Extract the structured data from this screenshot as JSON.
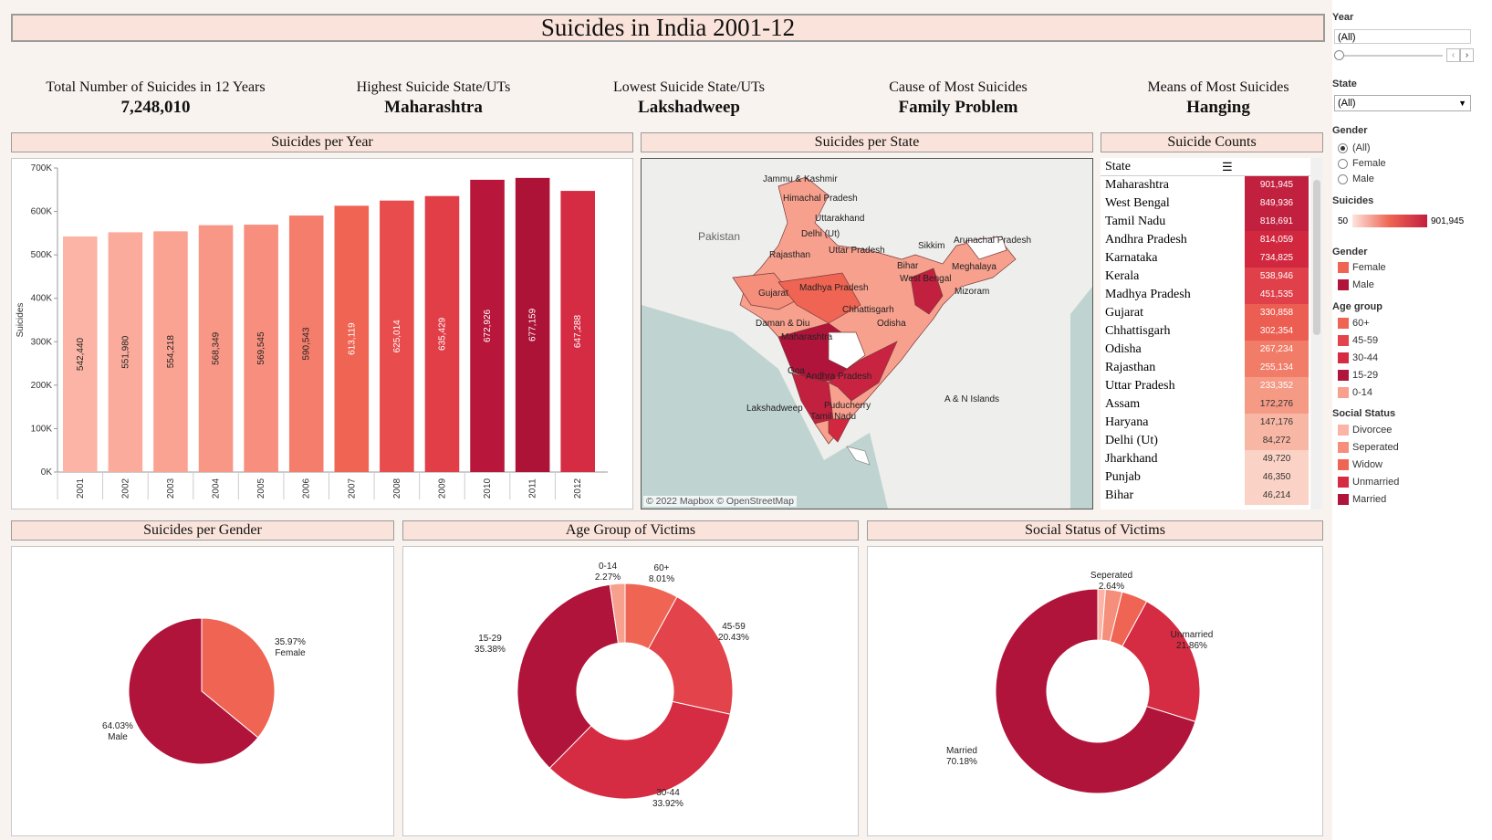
{
  "title": "Suicides in India 2001-12",
  "kpis": [
    {
      "label": "Total Number of Suicides in 12 Years",
      "value": "7,248,010"
    },
    {
      "label": "Highest Suicide State/UTs",
      "value": "Maharashtra"
    },
    {
      "label": "Lowest Suicide State/UTs",
      "value": "Lakshadweep"
    },
    {
      "label": "Cause of Most Suicides",
      "value": "Family Problem"
    },
    {
      "label": "Means of Most Suicides",
      "value": "Hanging"
    }
  ],
  "panels": {
    "per_year": "Suicides per Year",
    "per_state": "Suicides per State",
    "counts": "Suicide Counts",
    "gender": "Suicides per Gender",
    "age": "Age Group of Victims",
    "social": "Social Status of Victims"
  },
  "map": {
    "labels": [
      "Pakistan",
      "Jammu & Kashmir",
      "Himachal Pradesh",
      "Uttarakhand",
      "Delhi (Ut)",
      "Rajasthan",
      "Uttar Pradesh",
      "Sikkim",
      "Arunachal Pradesh",
      "Bihar",
      "Meghalaya",
      "West Bengal",
      "Gujarat",
      "Madhya Pradesh",
      "Mizoram",
      "Chhattisgarh",
      "Daman & Diu",
      "Odisha",
      "Maharashtra",
      "Goa",
      "Andhra Pradesh",
      "A & N Islands",
      "Lakshadweep",
      "Puducherry",
      "Tamil Nadu"
    ],
    "attribution": "© 2022 Mapbox  © OpenStreetMap"
  },
  "table": {
    "header": "State",
    "rows": [
      {
        "state": "Maharashtra",
        "count": "901,945"
      },
      {
        "state": "West Bengal",
        "count": "849,936"
      },
      {
        "state": "Tamil Nadu",
        "count": "818,691"
      },
      {
        "state": "Andhra Pradesh",
        "count": "814,059"
      },
      {
        "state": "Karnataka",
        "count": "734,825"
      },
      {
        "state": "Kerala",
        "count": "538,946"
      },
      {
        "state": "Madhya Pradesh",
        "count": "451,535"
      },
      {
        "state": "Gujarat",
        "count": "330,858"
      },
      {
        "state": "Chhattisgarh",
        "count": "302,354"
      },
      {
        "state": "Odisha",
        "count": "267,234"
      },
      {
        "state": "Rajasthan",
        "count": "255,134"
      },
      {
        "state": "Uttar Pradesh",
        "count": "233,352"
      },
      {
        "state": "Assam",
        "count": "172,276"
      },
      {
        "state": "Haryana",
        "count": "147,176"
      },
      {
        "state": "Delhi (Ut)",
        "count": "84,272"
      },
      {
        "state": "Jharkhand",
        "count": "49,720"
      },
      {
        "state": "Punjab",
        "count": "46,350"
      },
      {
        "state": "Bihar",
        "count": "46,214"
      }
    ]
  },
  "sidebar": {
    "year_label": "Year",
    "year_value": "(All)",
    "state_label": "State",
    "state_value": "(All)",
    "gender_filter_label": "Gender",
    "gender_options": [
      "(All)",
      "Female",
      "Male"
    ],
    "suicides_legend_label": "Suicides",
    "suicides_min": "50",
    "suicides_max": "901,945",
    "gender_legend_label": "Gender",
    "gender_legend": [
      {
        "name": "Female",
        "color": "#ef6452"
      },
      {
        "name": "Male",
        "color": "#b0143a"
      }
    ],
    "age_legend_label": "Age group",
    "age_legend": [
      {
        "name": "60+",
        "color": "#ef6452"
      },
      {
        "name": "45-59",
        "color": "#e3434a"
      },
      {
        "name": "30-44",
        "color": "#d62c43"
      },
      {
        "name": "15-29",
        "color": "#b0143a"
      },
      {
        "name": "0-14",
        "color": "#f7a08e"
      }
    ],
    "social_legend_label": "Social Status",
    "social_legend": [
      {
        "name": "Divorcee",
        "color": "#fbb4a6"
      },
      {
        "name": "Seperated",
        "color": "#f58f7c"
      },
      {
        "name": "Widow",
        "color": "#ef6452"
      },
      {
        "name": "Unmarried",
        "color": "#d62c43"
      },
      {
        "name": "Married",
        "color": "#b0143a"
      }
    ]
  },
  "chart_data": [
    {
      "type": "bar",
      "title": "Suicides per Year",
      "ylabel": "Suicides",
      "categories": [
        "2001",
        "2002",
        "2003",
        "2004",
        "2005",
        "2006",
        "2007",
        "2008",
        "2009",
        "2010",
        "2011",
        "2012"
      ],
      "values": [
        542440,
        551980,
        554218,
        568349,
        569545,
        590543,
        613119,
        625014,
        635429,
        672926,
        677159,
        647288
      ],
      "value_labels": [
        "542,440",
        "551,980",
        "554,218",
        "568,349",
        "569,545",
        "590,543",
        "613,119",
        "625,014",
        "635,429",
        "672,926",
        "677,159",
        "647,288"
      ],
      "colors": [
        "#fbb4a6",
        "#fbab9c",
        "#fba392",
        "#f99786",
        "#f88f7e",
        "#f47d6c",
        "#ef6452",
        "#e94c4c",
        "#e13e48",
        "#b8163b",
        "#ad1237",
        "#d62c43"
      ],
      "ylim": [
        0,
        700000
      ],
      "yticks": [
        0,
        100000,
        200000,
        300000,
        400000,
        500000,
        600000,
        700000
      ],
      "ytick_labels": [
        "0K",
        "100K",
        "200K",
        "300K",
        "400K",
        "500K",
        "600K",
        "700K"
      ]
    },
    {
      "type": "pie",
      "title": "Suicides per Gender",
      "slices": [
        {
          "name": "Female",
          "value": 35.97,
          "label": "35.97%",
          "color": "#ef6452"
        },
        {
          "name": "Male",
          "value": 64.03,
          "label": "64.03%",
          "color": "#b0143a"
        }
      ]
    },
    {
      "type": "pie",
      "title": "Age Group of Victims",
      "donut": true,
      "slices": [
        {
          "name": "60+",
          "value": 8.01,
          "label": "8.01%",
          "color": "#ef6452"
        },
        {
          "name": "45-59",
          "value": 20.43,
          "label": "20.43%",
          "color": "#e3434a"
        },
        {
          "name": "30-44",
          "value": 33.92,
          "label": "33.92%",
          "color": "#d62c43"
        },
        {
          "name": "15-29",
          "value": 35.38,
          "label": "35.38%",
          "color": "#b0143a"
        },
        {
          "name": "0-14",
          "value": 2.27,
          "label": "2.27%",
          "color": "#f7a08e"
        }
      ]
    },
    {
      "type": "pie",
      "title": "Social Status of Victims",
      "donut": true,
      "slices": [
        {
          "name": "Divorcee",
          "value": 1.2,
          "label": "",
          "color": "#fbb4a6"
        },
        {
          "name": "Seperated",
          "value": 2.64,
          "label": "2.64%",
          "color": "#f58f7c"
        },
        {
          "name": "Widow",
          "value": 4.11,
          "label": "",
          "color": "#ef6452"
        },
        {
          "name": "Unmarried",
          "value": 21.86,
          "label": "21.86%",
          "color": "#d62c43"
        },
        {
          "name": "Married",
          "value": 70.18,
          "label": "70.18%",
          "color": "#b0143a"
        }
      ]
    }
  ]
}
